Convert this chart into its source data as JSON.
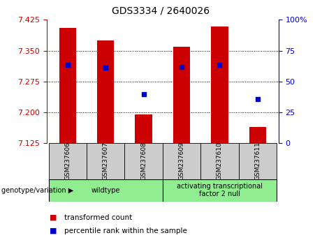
{
  "title": "GDS3334 / 2640026",
  "samples": [
    "GSM237606",
    "GSM237607",
    "GSM237608",
    "GSM237609",
    "GSM237610",
    "GSM237611"
  ],
  "bar_tops": [
    7.405,
    7.375,
    7.195,
    7.36,
    7.408,
    7.165
  ],
  "bar_base": 7.125,
  "blue_dot_y": [
    7.315,
    7.308,
    7.245,
    7.31,
    7.315,
    7.233
  ],
  "ylim": [
    7.125,
    7.425
  ],
  "yticks_left": [
    7.125,
    7.2,
    7.275,
    7.35,
    7.425
  ],
  "yticks_right": [
    0,
    25,
    50,
    75,
    100
  ],
  "bar_color": "#cc0000",
  "dot_color": "#0000cc",
  "left_axis_color": "#cc0000",
  "right_axis_color": "#0000cc",
  "title_fontsize": 10,
  "tick_fontsize": 8,
  "bar_width": 0.45,
  "wildtype_label": "wildtype",
  "atf_label": "activating transcriptional\nfactor 2 null",
  "group_color": "#90ee90",
  "group_prefix": "genotype/variation",
  "legend1_label": "transformed count",
  "legend2_label": "percentile rank within the sample"
}
